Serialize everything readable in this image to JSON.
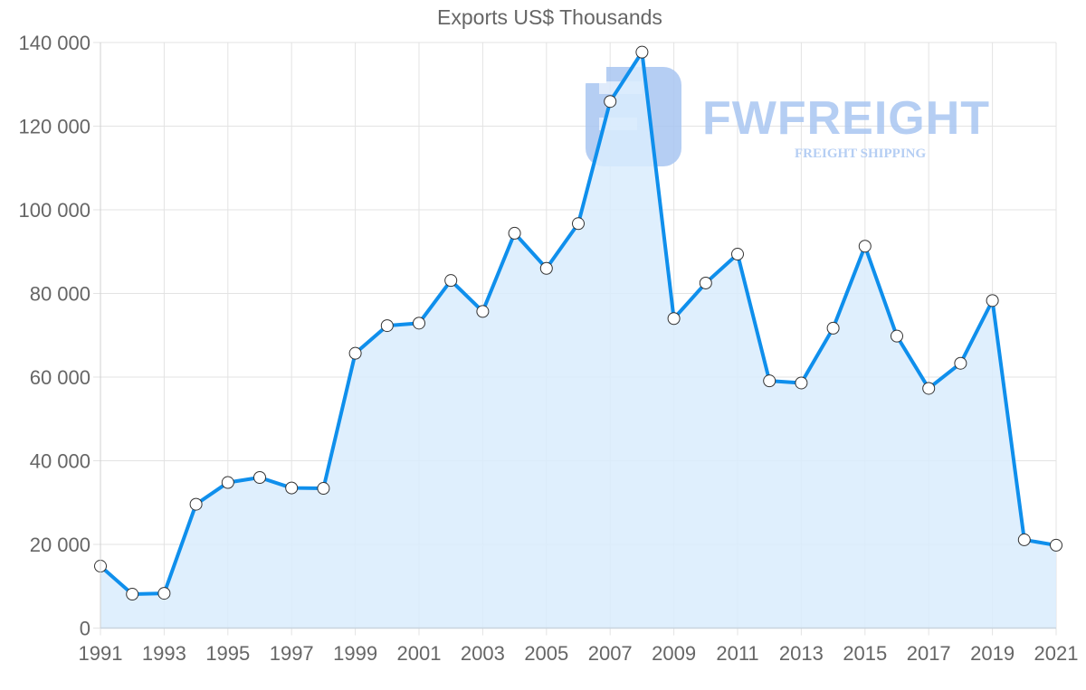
{
  "chart_data": {
    "type": "area",
    "title": "Exports US$ Thousands",
    "xlabel": "",
    "ylabel": "",
    "x": [
      1991,
      1992,
      1993,
      1994,
      1995,
      1996,
      1997,
      1998,
      1999,
      2000,
      2001,
      2002,
      2003,
      2004,
      2005,
      2006,
      2007,
      2008,
      2009,
      2010,
      2011,
      2012,
      2013,
      2014,
      2015,
      2016,
      2017,
      2018,
      2019,
      2020,
      2021
    ],
    "series": [
      {
        "name": "Exports US$ Thousands",
        "values": [
          14800,
          8100,
          8300,
          29600,
          34800,
          36000,
          33500,
          33400,
          65700,
          72300,
          72900,
          83100,
          75700,
          94400,
          86000,
          96700,
          125900,
          137700,
          74000,
          82500,
          89400,
          59100,
          58600,
          71700,
          91300,
          69800,
          57300,
          63300,
          78300,
          21100,
          19800
        ]
      }
    ],
    "ylim": [
      0,
      140000
    ],
    "yticks": [
      0,
      20000,
      40000,
      60000,
      80000,
      100000,
      120000,
      140000
    ],
    "ytick_labels": [
      "0",
      "20 000",
      "40 000",
      "60 000",
      "80 000",
      "100 000",
      "120 000",
      "140 000"
    ],
    "xtick_labels": [
      "1991",
      "1993",
      "1995",
      "1997",
      "1999",
      "2001",
      "2003",
      "2005",
      "2007",
      "2009",
      "2011",
      "2013",
      "2015",
      "2017",
      "2019",
      "2021"
    ],
    "grid": true,
    "legend": "none",
    "colors": {
      "line": "#0f8fec",
      "fill": "#d9ecfd",
      "marker_fill": "#ffffff",
      "marker_stroke": "#333333",
      "grid": "#e3e3e3",
      "text": "#666666"
    }
  },
  "watermark": {
    "brand": "FWFREIGHT",
    "tagline": "FREIGHT SHIPPING",
    "color": "#a9c6f2"
  }
}
